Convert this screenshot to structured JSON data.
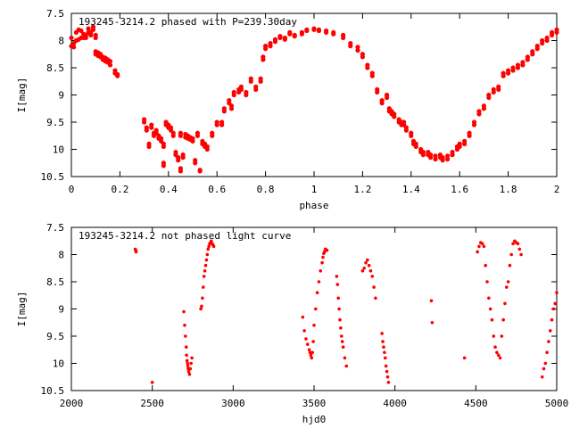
{
  "chart_data": [
    {
      "type": "scatter",
      "title": "193245-3214.2 phased with P=239.30day",
      "xlabel": "phase",
      "ylabel": "I[mag]",
      "xlim": [
        0,
        2
      ],
      "ylim": [
        10.5,
        7.5
      ],
      "y_inverted": true,
      "xticks": [
        "0",
        "0.2",
        "0.4",
        "0.6",
        "0.8",
        "1",
        "1.2",
        "1.4",
        "1.6",
        "1.8",
        "2"
      ],
      "yticks": [
        "7.5",
        "8",
        "8.5",
        "9",
        "9.5",
        "10",
        "10.5"
      ],
      "marker_color": "#ff0000",
      "marker": "filled-circle",
      "series": [
        {
          "x": [
            0.0,
            0.01,
            0.02,
            0.03,
            0.04,
            0.05,
            0.06,
            0.07,
            0.08,
            0.09,
            0.1,
            0.1,
            0.11,
            0.12,
            0.13,
            0.14,
            0.15,
            0.16,
            0.18,
            0.19,
            0.3,
            0.31,
            0.32,
            0.33,
            0.34,
            0.35,
            0.36,
            0.37,
            0.38,
            0.38,
            0.39,
            0.4,
            0.41,
            0.42,
            0.43,
            0.44,
            0.45,
            0.45,
            0.46,
            0.47,
            0.48,
            0.49,
            0.5,
            0.51,
            0.52,
            0.53,
            0.54,
            0.55,
            0.56,
            0.58,
            0.6,
            0.62,
            0.63,
            0.65,
            0.66,
            0.67,
            0.69,
            0.7,
            0.72,
            0.74,
            0.76,
            0.78,
            0.79,
            0.8,
            0.82,
            0.84,
            0.86,
            0.88,
            0.9,
            0.92,
            0.95,
            0.97,
            1.0,
            1.02,
            1.05,
            1.08,
            1.12,
            1.15,
            1.18,
            1.2,
            1.22,
            1.24,
            1.26,
            1.28,
            1.3,
            1.31,
            1.32,
            1.33,
            1.35,
            1.36,
            1.37,
            1.38,
            1.4,
            1.41,
            1.42,
            1.44,
            1.45,
            1.47,
            1.48,
            1.5,
            1.52,
            1.53,
            1.55,
            1.57,
            1.59,
            1.6,
            1.62,
            1.64,
            1.66,
            1.68,
            1.7,
            1.72,
            1.74,
            1.76,
            1.78,
            1.8,
            1.82,
            1.84,
            1.86,
            1.88,
            1.9,
            1.92,
            1.94,
            1.96,
            1.98,
            2.0
          ],
          "y": [
            7.95,
            8.05,
            7.85,
            7.8,
            7.82,
            7.88,
            7.9,
            7.78,
            7.85,
            7.75,
            7.9,
            8.2,
            8.22,
            8.25,
            8.3,
            8.32,
            8.35,
            8.38,
            8.55,
            8.62,
            9.45,
            9.6,
            9.9,
            9.55,
            9.7,
            9.65,
            9.75,
            9.8,
            9.9,
            10.25,
            9.5,
            9.55,
            9.6,
            9.7,
            10.05,
            10.15,
            9.7,
            10.35,
            10.1,
            9.72,
            9.75,
            9.78,
            9.8,
            10.2,
            9.7,
            10.38,
            9.85,
            9.9,
            9.95,
            9.7,
            9.5,
            9.5,
            9.25,
            9.1,
            9.2,
            8.95,
            8.9,
            8.85,
            8.95,
            8.7,
            8.85,
            8.7,
            8.3,
            8.1,
            8.05,
            7.98,
            7.92,
            7.95,
            7.85,
            7.9,
            7.85,
            7.8,
            7.78,
            7.8,
            7.82,
            7.85,
            7.9,
            8.05,
            8.12,
            8.25,
            8.45,
            8.6,
            8.9,
            9.1,
            9.0,
            9.25,
            9.3,
            9.35,
            9.45,
            9.5,
            9.5,
            9.6,
            9.7,
            9.85,
            9.9,
            10.0,
            10.05,
            10.05,
            10.1,
            10.12,
            10.1,
            10.15,
            10.12,
            10.05,
            9.95,
            9.9,
            9.85,
            9.7,
            9.5,
            9.3,
            9.2,
            9.0,
            8.9,
            8.85,
            8.6,
            8.55,
            8.5,
            8.45,
            8.4,
            8.3,
            8.2,
            8.1,
            8.0,
            7.95,
            7.85,
            7.8
          ],
          "y_low": [
            8.1,
            8.12,
            8.0,
            7.98,
            7.95,
            7.95,
            7.95,
            7.85,
            7.9,
            7.8,
            7.95,
            8.25,
            8.28,
            8.3,
            8.35,
            8.38,
            8.4,
            8.45,
            8.6,
            8.65,
            9.5,
            9.65,
            9.95,
            9.6,
            9.75,
            9.7,
            9.8,
            9.85,
            9.95,
            10.3,
            9.55,
            9.6,
            9.65,
            9.75,
            10.1,
            10.2,
            9.75,
            10.4,
            10.15,
            9.78,
            9.8,
            9.82,
            9.85,
            10.25,
            9.75,
            10.4,
            9.9,
            9.95,
            10.0,
            9.75,
            9.55,
            9.55,
            9.3,
            9.15,
            9.25,
            9.0,
            8.95,
            8.9,
            9.0,
            8.75,
            8.9,
            8.75,
            8.35,
            8.15,
            8.1,
            8.02,
            7.95,
            7.98,
            7.88,
            7.92,
            7.88,
            7.82,
            7.8,
            7.82,
            7.85,
            7.88,
            7.95,
            8.1,
            8.18,
            8.3,
            8.5,
            8.65,
            8.95,
            9.15,
            9.05,
            9.3,
            9.35,
            9.4,
            9.5,
            9.55,
            9.55,
            9.65,
            9.75,
            9.9,
            9.95,
            10.05,
            10.1,
            10.1,
            10.15,
            10.18,
            10.15,
            10.2,
            10.18,
            10.1,
            10.0,
            9.95,
            9.9,
            9.75,
            9.55,
            9.35,
            9.25,
            9.05,
            8.95,
            8.9,
            8.65,
            8.6,
            8.55,
            8.5,
            8.45,
            8.35,
            8.25,
            8.15,
            8.05,
            8.0,
            7.9,
            7.85
          ]
        }
      ]
    },
    {
      "type": "scatter",
      "title": "193245-3214.2 not phased light curve",
      "xlabel": "hjd0",
      "ylabel": "I[mag]",
      "xlim": [
        2000,
        5000
      ],
      "ylim": [
        10.5,
        7.5
      ],
      "y_inverted": true,
      "xticks": [
        "2000",
        "2500",
        "3000",
        "3500",
        "4000",
        "4500",
        "5000"
      ],
      "yticks": [
        "7.5",
        "8",
        "8.5",
        "9",
        "9.5",
        "10",
        "10.5"
      ],
      "marker_color": "#ff0000",
      "marker": "small-filled-circle",
      "series": [
        {
          "x": [
            2395,
            2398,
            2400,
            2500,
            2695,
            2700,
            2705,
            2710,
            2712,
            2715,
            2718,
            2720,
            2722,
            2725,
            2730,
            2735,
            2740,
            2745,
            2800,
            2805,
            2810,
            2815,
            2820,
            2825,
            2830,
            2835,
            2840,
            2845,
            2850,
            2855,
            2860,
            2865,
            2870,
            2875,
            2880,
            3430,
            3440,
            3450,
            3460,
            3470,
            3475,
            3480,
            3485,
            3490,
            3495,
            3500,
            3510,
            3520,
            3530,
            3540,
            3550,
            3555,
            3560,
            3565,
            3570,
            3580,
            3640,
            3645,
            3650,
            3655,
            3660,
            3665,
            3670,
            3675,
            3680,
            3690,
            3700,
            3800,
            3810,
            3820,
            3830,
            3840,
            3850,
            3860,
            3870,
            3880,
            3920,
            3925,
            3930,
            3935,
            3940,
            3945,
            3950,
            3955,
            3960,
            4225,
            4230,
            4430,
            4510,
            4520,
            4530,
            4540,
            4550,
            4560,
            4570,
            4580,
            4590,
            4600,
            4610,
            4620,
            4630,
            4640,
            4650,
            4660,
            4670,
            4680,
            4690,
            4700,
            4710,
            4720,
            4730,
            4740,
            4750,
            4760,
            4770,
            4780,
            4910,
            4920,
            4930,
            4940,
            4950,
            4960,
            4970,
            4980,
            4990,
            5000
          ],
          "y": [
            7.9,
            7.92,
            7.95,
            10.35,
            9.05,
            9.3,
            9.5,
            9.7,
            9.85,
            9.95,
            10.0,
            10.05,
            10.1,
            10.15,
            10.2,
            10.1,
            10.0,
            9.9,
            9.0,
            8.95,
            8.8,
            8.6,
            8.4,
            8.3,
            8.2,
            8.1,
            8.0,
            7.9,
            7.85,
            7.8,
            7.78,
            7.75,
            7.8,
            7.82,
            7.85,
            9.15,
            9.4,
            9.55,
            9.65,
            9.75,
            9.8,
            9.85,
            9.9,
            9.8,
            9.6,
            9.3,
            9.0,
            8.7,
            8.5,
            8.3,
            8.15,
            8.05,
            7.98,
            7.95,
            7.9,
            7.92,
            8.4,
            8.55,
            8.8,
            9.0,
            9.2,
            9.35,
            9.5,
            9.6,
            9.7,
            9.9,
            10.05,
            8.3,
            8.25,
            8.15,
            8.1,
            8.2,
            8.3,
            8.4,
            8.6,
            8.8,
            9.45,
            9.6,
            9.7,
            9.8,
            9.9,
            10.05,
            10.15,
            10.25,
            10.35,
            8.85,
            9.25,
            9.9,
            7.95,
            7.85,
            7.78,
            7.8,
            7.85,
            8.2,
            8.5,
            8.8,
            9.0,
            9.2,
            9.5,
            9.7,
            9.8,
            9.85,
            9.9,
            9.5,
            9.2,
            8.9,
            8.6,
            8.5,
            8.2,
            8.0,
            7.8,
            7.75,
            7.78,
            7.8,
            7.9,
            8.0,
            10.25,
            10.1,
            10.0,
            9.8,
            9.6,
            9.4,
            9.2,
            9.0,
            8.9,
            8.7
          ]
        }
      ]
    }
  ]
}
